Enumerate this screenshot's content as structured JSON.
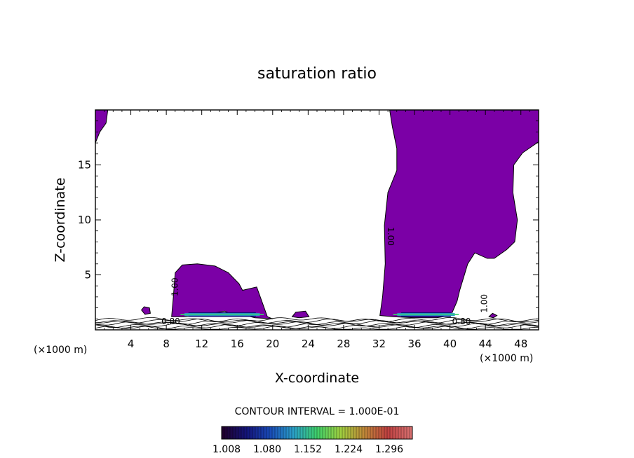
{
  "chart_data": {
    "type": "filled-contour",
    "title": "saturation ratio",
    "xlabel": "X-coordinate",
    "ylabel": "Z-coordinate",
    "x_unit_left": "(×1000 m)",
    "x_unit_right": "(×1000 m)",
    "xlim": [
      0,
      50
    ],
    "ylim": [
      0,
      20
    ],
    "xticks": [
      "4",
      "8",
      "12",
      "16",
      "20",
      "24",
      "28",
      "32",
      "36",
      "40",
      "44",
      "48"
    ],
    "yticks": [
      "5",
      "10",
      "15"
    ],
    "xtick_values": [
      4,
      8,
      12,
      16,
      20,
      24,
      28,
      32,
      36,
      40,
      44,
      48
    ],
    "ytick_values": [
      5,
      10,
      15
    ],
    "contour_interval_text": "CONTOUR INTERVAL = 1.000E-01",
    "contour_labels": [
      {
        "text": "1.00",
        "x": 9.3,
        "z": 3.9,
        "rotation": -90
      },
      {
        "text": "1.00",
        "x": 33.0,
        "z": 8.5,
        "rotation": 90
      },
      {
        "text": "1.00",
        "x": 44.2,
        "z": 2.4,
        "rotation": -90
      },
      {
        "text": "0.80",
        "x": 8.5,
        "z": 0.5,
        "rotation": 0
      },
      {
        "text": "0.80",
        "x": 41.3,
        "z": 0.5,
        "rotation": 0
      }
    ],
    "fill_color": "#7b00a6",
    "colorbar": {
      "tick_labels": [
        "1.008",
        "1.080",
        "1.152",
        "1.224",
        "1.296"
      ],
      "colors": [
        "#20002e",
        "#14147a",
        "#1a4ab8",
        "#2aa0c8",
        "#3ed06a",
        "#a0d040",
        "#c08838",
        "#c04040",
        "#d87070"
      ]
    },
    "regions": [
      {
        "name": "upper-left-wedge",
        "points": [
          [
            0,
            20
          ],
          [
            1.4,
            20
          ],
          [
            1.2,
            18.8
          ],
          [
            0.5,
            18
          ],
          [
            0,
            17
          ]
        ]
      },
      {
        "name": "left-cloud",
        "points": [
          [
            8.6,
            1.2
          ],
          [
            8.8,
            3
          ],
          [
            9,
            5.2
          ],
          [
            9.8,
            5.9
          ],
          [
            11.5,
            6
          ],
          [
            13.5,
            5.8
          ],
          [
            15,
            5.2
          ],
          [
            16.2,
            4.2
          ],
          [
            16.6,
            3.6
          ],
          [
            18.2,
            3.9
          ],
          [
            18.6,
            3
          ],
          [
            19.4,
            1.2
          ],
          [
            20,
            1
          ],
          [
            18,
            1.1
          ],
          [
            17,
            1.3
          ],
          [
            16.2,
            1.5
          ],
          [
            15.4,
            1.4
          ],
          [
            14.6,
            1.7
          ],
          [
            13.2,
            1.5
          ],
          [
            12.6,
            1.4
          ],
          [
            11.4,
            1.3
          ],
          [
            10,
            1.2
          ]
        ]
      },
      {
        "name": "right-cloud",
        "points": [
          [
            33.2,
            20
          ],
          [
            37.8,
            20
          ],
          [
            43.5,
            20.1
          ],
          [
            45.5,
            20.1
          ],
          [
            47,
            20.2
          ],
          [
            50,
            20.1
          ],
          [
            50,
            17.1
          ],
          [
            48.2,
            16.1
          ],
          [
            47.2,
            15
          ],
          [
            47.1,
            12.5
          ],
          [
            47.6,
            10
          ],
          [
            47.3,
            8
          ],
          [
            46.4,
            7.3
          ],
          [
            45,
            6.5
          ],
          [
            44.2,
            6.5
          ],
          [
            42.8,
            7
          ],
          [
            42,
            6
          ],
          [
            41.1,
            3.6
          ],
          [
            40.8,
            2.6
          ],
          [
            40.1,
            1.3
          ],
          [
            38.5,
            1.1
          ],
          [
            36,
            1.1
          ],
          [
            33.6,
            1.2
          ],
          [
            32.1,
            1.3
          ],
          [
            32.4,
            3
          ],
          [
            32.7,
            6
          ],
          [
            32.6,
            9.5
          ],
          [
            33,
            12.5
          ],
          [
            34,
            14.5
          ],
          [
            34,
            16.5
          ],
          [
            33.5,
            18.5
          ]
        ]
      },
      {
        "name": "blob-5",
        "points": [
          [
            5.2,
            1.8
          ],
          [
            5.5,
            2.1
          ],
          [
            6.1,
            2
          ],
          [
            6.2,
            1.5
          ],
          [
            5.6,
            1.4
          ]
        ]
      },
      {
        "name": "blob-22",
        "points": [
          [
            22.2,
            1.2
          ],
          [
            22.6,
            1.6
          ],
          [
            23.7,
            1.7
          ],
          [
            24.1,
            1.2
          ],
          [
            23,
            1.1
          ]
        ]
      },
      {
        "name": "blob-44",
        "points": [
          [
            44.4,
            1.2
          ],
          [
            44.8,
            1.5
          ],
          [
            45.3,
            1.3
          ],
          [
            44.9,
            1.1
          ]
        ]
      }
    ]
  }
}
